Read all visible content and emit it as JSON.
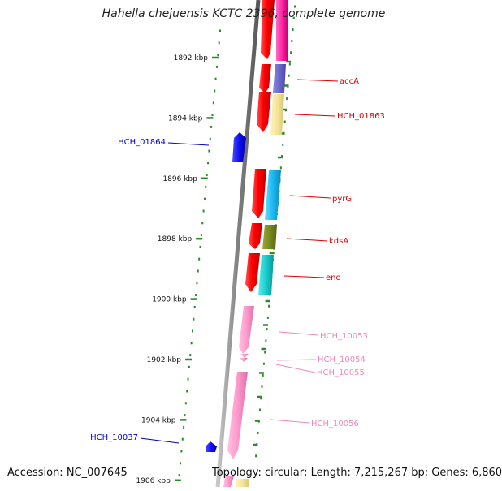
{
  "title": "Hahella chejuensis KCTC 2396, complete genome",
  "footer": {
    "accession": "Accession: NC_007645",
    "topology": "Topology: circular; Length: 7,215,267 bp; Genes: 6,860"
  },
  "ruler": {
    "unit_label_suffix": " kbp",
    "ticks": [
      {
        "kbp": 1892,
        "label": "1892 kbp"
      },
      {
        "kbp": 1894,
        "label": "1894 kbp"
      },
      {
        "kbp": 1896,
        "label": "1896 kbp"
      },
      {
        "kbp": 1898,
        "label": "1898 kbp"
      },
      {
        "kbp": 1900,
        "label": "1900 kbp"
      },
      {
        "kbp": 1902,
        "label": "1902 kbp"
      },
      {
        "kbp": 1904,
        "label": "1904 kbp"
      },
      {
        "kbp": 1906,
        "label": "1906 kbp"
      }
    ]
  },
  "gene_labels": [
    {
      "name": "accA",
      "color": "#dd0000"
    },
    {
      "name": "HCH_01863",
      "color": "#dd0000"
    },
    {
      "name": "HCH_01864",
      "color": "#0000cc"
    },
    {
      "name": "pyrG",
      "color": "#dd0000"
    },
    {
      "name": "kdsA",
      "color": "#dd0000"
    },
    {
      "name": "eno",
      "color": "#dd0000"
    },
    {
      "name": "HCH_10053",
      "color": "#ee88bb"
    },
    {
      "name": "HCH_10054",
      "color": "#ee88bb"
    },
    {
      "name": "HCH_10055",
      "color": "#ee88bb"
    },
    {
      "name": "HCH_10056",
      "color": "#ee88bb"
    },
    {
      "name": "HCH_10037",
      "color": "#0000cc"
    }
  ],
  "colors": {
    "backbone": "#808080",
    "tick_dots": "#2a8a2a",
    "cds_forward": "#ff1010",
    "rna_pink": "#ff99cc",
    "reverse_strand": "#1010ee"
  }
}
